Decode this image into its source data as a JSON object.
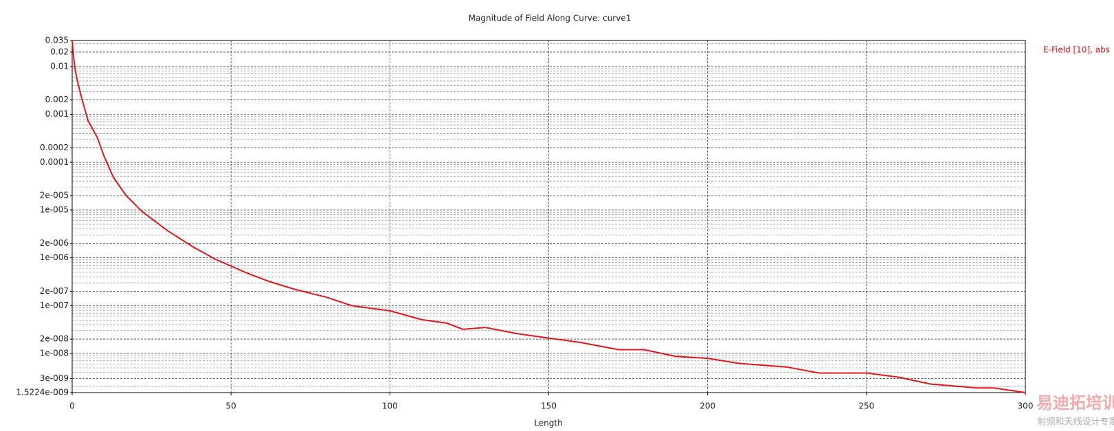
{
  "chart_data": {
    "type": "line",
    "title": "Magnitude of Field Along Curve: curve1",
    "x_label": "Length",
    "log_y": true,
    "grid": true,
    "legend_position": "top-right",
    "xlim": [
      0,
      300
    ],
    "xticks": [
      0,
      50,
      100,
      150,
      200,
      250,
      300
    ],
    "ylim": [
      1.5224e-09,
      0.035
    ],
    "yticks": [
      0.035,
      0.02,
      0.01,
      0.002,
      0.001,
      0.0002,
      0.0001,
      {
        "value": 2e-05,
        "label": "2e-005"
      },
      {
        "value": 1e-05,
        "label": "1e-005"
      },
      {
        "value": 2e-06,
        "label": "2e-006"
      },
      {
        "value": 1e-06,
        "label": "1e-006"
      },
      {
        "value": 2e-07,
        "label": "2e-007"
      },
      {
        "value": 1e-07,
        "label": "1e-007"
      },
      {
        "value": 2e-08,
        "label": "2e-008"
      },
      {
        "value": 1e-08,
        "label": "1e-008"
      },
      {
        "value": 3e-09,
        "label": "3e-009"
      },
      {
        "value": 1.5224e-09,
        "label": "1.5224e-009"
      }
    ],
    "minor_gridlines": [
      2e-09,
      4e-09,
      5e-09,
      6e-09,
      7e-09,
      8e-09,
      9e-09,
      3e-08,
      4e-08,
      5e-08,
      6e-08,
      7e-08,
      8e-08,
      9e-08,
      3e-07,
      4e-07,
      5e-07,
      6e-07,
      7e-07,
      8e-07,
      9e-07,
      3e-06,
      4e-06,
      5e-06,
      6e-06,
      7e-06,
      8e-06,
      9e-06,
      3e-05,
      4e-05,
      5e-05,
      6e-05,
      7e-05,
      8e-05,
      9e-05,
      0.0003,
      0.0004,
      0.0005,
      0.0006,
      0.0007,
      0.0008,
      0.0009,
      0.003,
      0.004,
      0.005,
      0.006,
      0.007,
      0.008,
      0.009,
      0.03
    ],
    "x": [
      0,
      0.5,
      1,
      2,
      3,
      5,
      8,
      10,
      13,
      17,
      22,
      30,
      38,
      45,
      55,
      62,
      70,
      80,
      88,
      100,
      110,
      118,
      123,
      130,
      140,
      150,
      160,
      172,
      180,
      190,
      200,
      210,
      225,
      235,
      250,
      260,
      270,
      285,
      290,
      300
    ],
    "series": [
      {
        "name": "E-Field [10], abs",
        "color": "#e8141a",
        "values": [
          0.035,
          0.015,
          0.008,
          0.004,
          0.0022,
          0.00074,
          0.00032,
          0.000135,
          4.8e-05,
          2e-05,
          9.3e-06,
          3.7e-06,
          1.7e-06,
          9.4e-07,
          4.8e-07,
          3.2e-07,
          2.2e-07,
          1.5e-07,
          1e-07,
          7.8e-08,
          5.1e-08,
          4.3e-08,
          3.2e-08,
          3.5e-08,
          2.6e-08,
          2.1e-08,
          1.7e-08,
          1.2e-08,
          1.2e-08,
          8.7e-09,
          7.9e-09,
          6.2e-09,
          5.2e-09,
          3.9e-09,
          3.9e-09,
          3.2e-09,
          2.3e-09,
          1.9e-09,
          1.9e-09,
          1.5224e-09
        ]
      }
    ],
    "watermark": [
      "易迪拓培训",
      "射频和天线设计专家"
    ]
  }
}
